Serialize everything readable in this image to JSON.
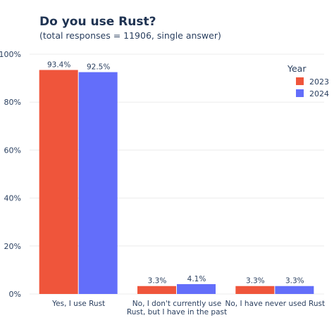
{
  "chart_data": {
    "type": "bar",
    "title": "Do you use Rust?",
    "subtitle": "(total responses = 11906, single answer)",
    "categories": [
      [
        "Yes, I use Rust"
      ],
      [
        "No, I don't currently use",
        "Rust, but I have in the past"
      ],
      [
        "No, I have never used Rust"
      ]
    ],
    "series": [
      {
        "name": "2023",
        "color": "#ef553b",
        "values": [
          93.4,
          3.3,
          3.3
        ],
        "labels": [
          "93.4%",
          "3.3%",
          "3.3%"
        ]
      },
      {
        "name": "2024",
        "color": "#636efa",
        "values": [
          92.5,
          4.1,
          3.3
        ],
        "labels": [
          "92.5%",
          "4.1%",
          "3.3%"
        ]
      }
    ],
    "ylim": [
      0,
      100
    ],
    "yticks": [
      0,
      20,
      40,
      60,
      80,
      100
    ],
    "ytick_labels": [
      "0%",
      "20%",
      "40%",
      "60%",
      "80%",
      "100%"
    ],
    "legend": {
      "title": "Year",
      "placement": "top-right"
    },
    "grid": true
  }
}
